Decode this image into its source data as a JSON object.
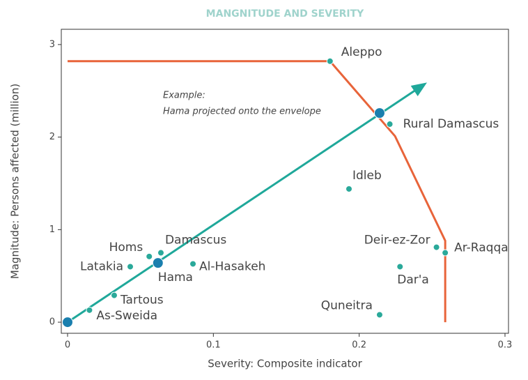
{
  "chart_data": {
    "type": "scatter",
    "title": "MANGNITUDE AND SEVERITY",
    "xlabel": "Severity: Composite indicator",
    "ylabel": "Magnitude: Persons affected (million)",
    "xlim": [
      -0.0043,
      0.3024
    ],
    "ylim": [
      -0.12,
      3.165
    ],
    "xticks": [
      0,
      0.1,
      0.2,
      0.3
    ],
    "yticks": [
      0,
      1,
      2,
      3
    ],
    "points": {
      "labels": [
        "Aleppo",
        "Rural Damascus",
        "Idleb",
        "Deir-ez-Zor",
        "Ar-Raqqa",
        "Dar'a",
        "Quneitra",
        "Homs",
        "Damascus",
        "Latakia",
        "Hama",
        "Al-Hasakeh",
        "Tartous",
        "As-Sweida"
      ],
      "x": [
        0.18,
        0.221,
        0.193,
        0.253,
        0.259,
        0.228,
        0.214,
        0.056,
        0.064,
        0.043,
        0.062,
        0.086,
        0.032,
        0.015
      ],
      "y": [
        2.82,
        2.14,
        1.44,
        0.81,
        0.75,
        0.6,
        0.08,
        0.71,
        0.75,
        0.6,
        0.64,
        0.63,
        0.29,
        0.13
      ],
      "highlighted": [
        false,
        false,
        false,
        false,
        false,
        false,
        false,
        false,
        false,
        false,
        true,
        false,
        false,
        false
      ],
      "color": "#2aa99a",
      "highlight_color": "#1a7fae"
    },
    "markers": {
      "x": [
        0,
        0.214
      ],
      "y": [
        0,
        2.26
      ],
      "color": "#1a7fae"
    },
    "envelope": {
      "x": [
        0,
        0.18,
        0.2246,
        0.259,
        0.259
      ],
      "y": [
        2.82,
        2.82,
        2.01,
        0.88,
        0
      ],
      "color": "#e8643a"
    },
    "arrow": {
      "x": [
        0,
        0.2465
      ],
      "y": [
        0,
        2.59
      ],
      "color": "#1fa89a"
    },
    "annotation": [
      "Example:",
      "Hama projected onto the envelope"
    ]
  }
}
